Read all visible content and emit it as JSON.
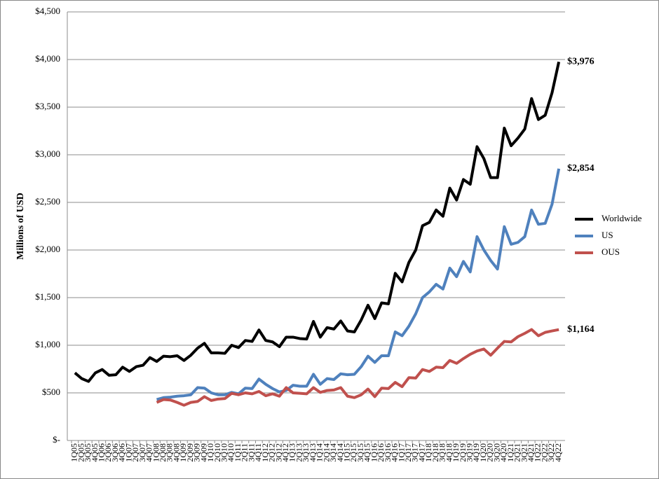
{
  "chart_data": {
    "type": "line",
    "ylabel": "Millions of USD",
    "categories": [
      "1Q05",
      "2Q05",
      "3Q05",
      "4Q05",
      "1Q06",
      "2Q06",
      "3Q06",
      "4Q06",
      "1Q07",
      "2Q07",
      "3Q07",
      "4Q07",
      "1Q08",
      "2Q08",
      "3Q08",
      "4Q08",
      "1Q09",
      "2Q09",
      "3Q09",
      "4Q09",
      "1Q10",
      "2Q10",
      "3Q10",
      "4Q10",
      "1Q11",
      "2Q11",
      "3Q11",
      "4Q11",
      "1Q12",
      "2Q12",
      "3Q12",
      "4Q12",
      "1Q13",
      "2Q13",
      "3Q13",
      "4Q13",
      "1Q14",
      "2Q14",
      "3Q14",
      "4Q14",
      "1Q15",
      "2Q15",
      "3Q15",
      "4Q15",
      "1Q16",
      "2Q16",
      "3Q16",
      "4Q16",
      "1Q17",
      "2Q17",
      "3Q17",
      "4Q17",
      "1Q18",
      "2Q18",
      "3Q18",
      "4Q18",
      "1Q19",
      "2Q19",
      "3Q19",
      "4Q19",
      "1Q20",
      "2Q20",
      "3Q20",
      "4Q20",
      "1Q21",
      "2Q21",
      "3Q21",
      "4Q21",
      "1Q22",
      "2Q22",
      "3Q22",
      "4Q22"
    ],
    "series": [
      {
        "name": "Worldwide",
        "color": "#000000",
        "values": [
          710,
          650,
          620,
          710,
          745,
          685,
          690,
          770,
          725,
          775,
          790,
          870,
          830,
          885,
          880,
          890,
          840,
          895,
          970,
          1020,
          920,
          920,
          915,
          1000,
          975,
          1050,
          1040,
          1160,
          1050,
          1035,
          985,
          1085,
          1085,
          1070,
          1065,
          1250,
          1085,
          1185,
          1170,
          1255,
          1150,
          1140,
          1265,
          1420,
          1280,
          1445,
          1435,
          1755,
          1665,
          1870,
          2000,
          2255,
          2290,
          2420,
          2355,
          2650,
          2525,
          2740,
          2690,
          3085,
          2960,
          2760,
          2760,
          3280,
          3095,
          3175,
          3270,
          3590,
          3370,
          3415,
          3650,
          3976
        ],
        "value_labels": [
          null,
          null,
          null,
          null,
          null,
          null,
          null,
          null,
          null,
          null,
          null,
          null,
          null,
          null,
          null,
          null,
          null,
          null,
          null,
          null,
          null,
          null,
          null,
          null,
          null,
          null,
          null,
          null,
          null,
          null,
          null,
          null,
          null,
          null,
          null,
          null,
          null,
          null,
          null,
          null,
          null,
          null,
          null,
          null,
          null,
          null,
          null,
          null,
          null,
          null,
          null,
          null,
          null,
          null,
          null,
          null,
          null,
          null,
          null,
          null,
          null,
          null,
          null,
          null,
          null,
          null,
          null,
          null,
          null,
          null,
          null,
          "$3,976"
        ]
      },
      {
        "name": "US",
        "color": "#4f81bd",
        "values": [
          null,
          null,
          null,
          null,
          null,
          null,
          null,
          null,
          null,
          null,
          null,
          null,
          430,
          450,
          455,
          465,
          470,
          480,
          555,
          550,
          500,
          480,
          480,
          505,
          490,
          550,
          545,
          645,
          590,
          545,
          510,
          525,
          580,
          570,
          570,
          695,
          590,
          650,
          640,
          700,
          690,
          695,
          775,
          885,
          820,
          890,
          890,
          1140,
          1100,
          1200,
          1330,
          1500,
          1560,
          1640,
          1590,
          1810,
          1720,
          1880,
          1770,
          2140,
          2000,
          1890,
          1800,
          2245,
          2060,
          2080,
          2140,
          2420,
          2270,
          2280,
          2480,
          2854
        ],
        "value_labels": [
          null,
          null,
          null,
          null,
          null,
          null,
          null,
          null,
          null,
          null,
          null,
          null,
          null,
          null,
          null,
          null,
          null,
          null,
          null,
          null,
          null,
          null,
          null,
          null,
          null,
          null,
          null,
          null,
          null,
          null,
          null,
          null,
          null,
          null,
          null,
          null,
          null,
          null,
          null,
          null,
          null,
          null,
          null,
          null,
          null,
          null,
          null,
          null,
          null,
          null,
          null,
          null,
          null,
          null,
          null,
          null,
          null,
          null,
          null,
          null,
          null,
          null,
          null,
          null,
          null,
          null,
          null,
          null,
          null,
          null,
          null,
          "$2,854"
        ]
      },
      {
        "name": "OUS",
        "color": "#c0504d",
        "values": [
          null,
          null,
          null,
          null,
          null,
          null,
          null,
          null,
          null,
          null,
          null,
          null,
          400,
          430,
          425,
          400,
          370,
          400,
          410,
          460,
          420,
          435,
          440,
          495,
          480,
          500,
          490,
          515,
          470,
          490,
          465,
          555,
          500,
          495,
          490,
          555,
          505,
          525,
          530,
          555,
          465,
          450,
          480,
          540,
          460,
          550,
          545,
          610,
          565,
          660,
          655,
          745,
          725,
          770,
          765,
          840,
          810,
          860,
          905,
          940,
          960,
          895,
          970,
          1040,
          1035,
          1090,
          1125,
          1165,
          1100,
          1135,
          1150,
          1164
        ],
        "value_labels": [
          null,
          null,
          null,
          null,
          null,
          null,
          null,
          null,
          null,
          null,
          null,
          null,
          null,
          null,
          null,
          null,
          null,
          null,
          null,
          null,
          null,
          null,
          null,
          null,
          null,
          null,
          null,
          null,
          null,
          null,
          null,
          null,
          null,
          null,
          null,
          null,
          null,
          null,
          null,
          null,
          null,
          null,
          null,
          null,
          null,
          null,
          null,
          null,
          null,
          null,
          null,
          null,
          null,
          null,
          null,
          null,
          null,
          null,
          null,
          null,
          null,
          null,
          null,
          null,
          null,
          null,
          null,
          null,
          null,
          null,
          null,
          "$1,164"
        ]
      }
    ],
    "ylim": [
      0,
      4500
    ],
    "yticks": [
      {
        "value": 0,
        "label": "$-"
      },
      {
        "value": 500,
        "label": "$500"
      },
      {
        "value": 1000,
        "label": "$1,000"
      },
      {
        "value": 1500,
        "label": "$1,500"
      },
      {
        "value": 2000,
        "label": "$2,000"
      },
      {
        "value": 2500,
        "label": "$2,500"
      },
      {
        "value": 3000,
        "label": "$3,000"
      },
      {
        "value": 3500,
        "label": "$3,500"
      },
      {
        "value": 4000,
        "label": "$4,000"
      },
      {
        "value": 4500,
        "label": "$4,500"
      }
    ],
    "grid": true,
    "legend": "right"
  }
}
